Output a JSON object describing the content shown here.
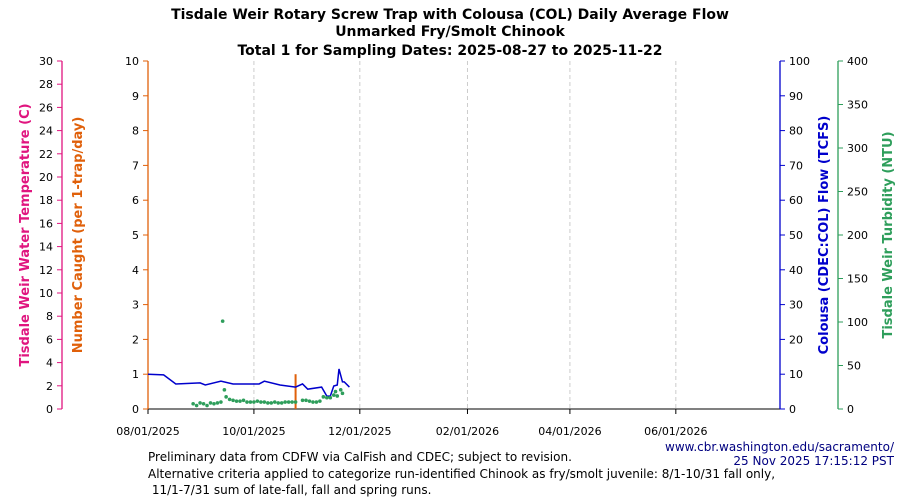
{
  "chart_data": {
    "type": "line",
    "title": [
      "Tisdale Weir Rotary Screw Trap with Colousa (COL) Daily Average Flow",
      "Unmarked Fry/Smolt Chinook",
      "Total 1 for Sampling Dates: 2025-08-27 to 2025-11-22"
    ],
    "x_axis": {
      "type": "date",
      "range": [
        "2025-08-01",
        "2026-07-31"
      ],
      "ticks": [
        "2025-08-01",
        "2025-10-01",
        "2025-12-01",
        "2026-02-01",
        "2026-04-01",
        "2026-06-01"
      ],
      "tick_labels": [
        "08/01/2025",
        "10/01/2025",
        "12/01/2025",
        "02/01/2026",
        "04/01/2026",
        "06/01/2026"
      ],
      "grid": "dashed vertical"
    },
    "axes": {
      "temperature": {
        "label": "Tisdale Weir Water Temperature (C)",
        "range": [
          0,
          30
        ],
        "step": 2,
        "color": "#e0157f",
        "side": "left-outer"
      },
      "catch": {
        "label": "Number Caught (per 1-trap/day)",
        "range": [
          0,
          10
        ],
        "step": 1,
        "color": "#e0600a",
        "side": "left-inner"
      },
      "flow": {
        "label": "Colousa (CDEC:COL) Flow (TCFS)",
        "range": [
          0,
          100
        ],
        "step": 10,
        "color": "#0000cc",
        "side": "right-inner"
      },
      "turbidity": {
        "label": "Tisdale Weir Turbidity (NTU)",
        "range": [
          0,
          400
        ],
        "step": 50,
        "color": "#2e9e5b",
        "side": "right-outer"
      }
    },
    "catch_bars": [
      [
        "2025-10-25",
        1
      ]
    ],
    "flow": [
      [
        "2025-08-01",
        10
      ],
      [
        "2025-08-10",
        9.8
      ],
      [
        "2025-08-17",
        7.2
      ],
      [
        "2025-08-31",
        7.5
      ],
      [
        "2025-09-03",
        6.9
      ],
      [
        "2025-09-12",
        8
      ],
      [
        "2025-09-19",
        7.2
      ],
      [
        "2025-10-04",
        7.2
      ],
      [
        "2025-10-07",
        8
      ],
      [
        "2025-10-16",
        6.9
      ],
      [
        "2025-10-25",
        6.3
      ],
      [
        "2025-10-29",
        7.2
      ],
      [
        "2025-11-01",
        5.7
      ],
      [
        "2025-11-09",
        6.3
      ],
      [
        "2025-11-12",
        3.7
      ],
      [
        "2025-11-14",
        3.7
      ],
      [
        "2025-11-16",
        6.6
      ],
      [
        "2025-11-18",
        6.9
      ],
      [
        "2025-11-19",
        11.5
      ],
      [
        "2025-11-21",
        7.8
      ],
      [
        "2025-11-22",
        7.8
      ],
      [
        "2025-11-25",
        6.3
      ]
    ],
    "turbidity": [
      [
        "2025-08-27",
        6
      ],
      [
        "2025-08-29",
        4
      ],
      [
        "2025-08-31",
        7
      ],
      [
        "2025-09-02",
        6
      ],
      [
        "2025-09-04",
        4
      ],
      [
        "2025-09-06",
        7
      ],
      [
        "2025-09-08",
        6
      ],
      [
        "2025-09-10",
        7
      ],
      [
        "2025-09-12",
        8
      ],
      [
        "2025-09-13",
        101
      ],
      [
        "2025-09-14",
        22
      ],
      [
        "2025-09-15",
        14
      ],
      [
        "2025-09-17",
        11
      ],
      [
        "2025-09-19",
        10
      ],
      [
        "2025-09-21",
        9
      ],
      [
        "2025-09-23",
        9
      ],
      [
        "2025-09-25",
        10
      ],
      [
        "2025-09-27",
        8
      ],
      [
        "2025-09-29",
        8
      ],
      [
        "2025-10-01",
        8
      ],
      [
        "2025-10-03",
        9
      ],
      [
        "2025-10-05",
        8
      ],
      [
        "2025-10-07",
        8
      ],
      [
        "2025-10-09",
        7
      ],
      [
        "2025-10-11",
        7
      ],
      [
        "2025-10-13",
        8
      ],
      [
        "2025-10-15",
        7
      ],
      [
        "2025-10-17",
        7
      ],
      [
        "2025-10-19",
        8
      ],
      [
        "2025-10-21",
        8
      ],
      [
        "2025-10-23",
        8
      ],
      [
        "2025-10-25",
        8
      ],
      [
        "2025-10-29",
        10
      ],
      [
        "2025-10-31",
        10
      ],
      [
        "2025-11-02",
        9
      ],
      [
        "2025-11-04",
        8
      ],
      [
        "2025-11-06",
        8
      ],
      [
        "2025-11-08",
        9
      ],
      [
        "2025-11-10",
        14
      ],
      [
        "2025-11-12",
        13
      ],
      [
        "2025-11-14",
        13
      ],
      [
        "2025-11-16",
        16
      ],
      [
        "2025-11-17",
        20
      ],
      [
        "2025-11-18",
        15
      ],
      [
        "2025-11-20",
        22
      ],
      [
        "2025-11-21",
        18
      ]
    ]
  },
  "footer": {
    "url": "www.cbr.washington.edu/sacramento/",
    "timestamp": "25 Nov 2025 17:15:12 PST",
    "note1": "Preliminary data from CDFW via CalFish and CDEC; subject to revision.",
    "note2": "Alternative criteria applied to categorize run-identified Chinook as fry/smolt juvenile: 8/1-10/31 fall only,",
    "note3": " 11/1-7/31 sum of late-fall, fall and spring runs."
  }
}
